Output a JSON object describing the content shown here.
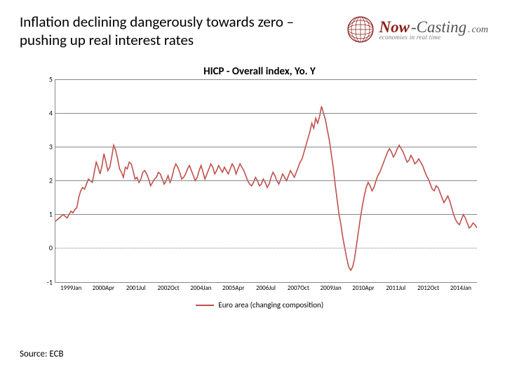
{
  "header": {
    "title": "Inflation declining dangerously towards zero – pushing up real interest rates",
    "logo_now": "Now",
    "logo_casting": "-Casting",
    "logo_dot": ".",
    "logo_com": "com",
    "logo_tagline": "economies in real time"
  },
  "chart": {
    "type": "line",
    "title": "HICP - Overall index, Yo. Y",
    "title_fontsize": 15,
    "background_color": "#ffffff",
    "grid_color": "#888888",
    "zero_line_style": "dotted",
    "line_color": "#c0504d",
    "line_width": 1.6,
    "ylim": [
      -1,
      5
    ],
    "yticks": [
      -1,
      0,
      1,
      2,
      3,
      4,
      5
    ],
    "label_fontsize": 10,
    "x_labels": [
      "1999Jan",
      "2000Apr",
      "2001Jul",
      "2002Oct",
      "2004Jan",
      "2005Apr",
      "2006Jul",
      "2007Oct",
      "2009Jan",
      "2010Apr",
      "2011Jul",
      "2012Oct",
      "2014Jan"
    ],
    "series": [
      0.8,
      0.85,
      0.9,
      0.95,
      1.0,
      0.95,
      0.9,
      1.0,
      1.1,
      1.05,
      1.15,
      1.2,
      1.5,
      1.7,
      1.8,
      1.75,
      1.9,
      2.05,
      2.0,
      1.95,
      2.25,
      2.55,
      2.4,
      2.2,
      2.45,
      2.8,
      2.55,
      2.3,
      2.4,
      2.7,
      3.05,
      2.9,
      2.65,
      2.35,
      2.25,
      2.1,
      2.4,
      2.35,
      2.55,
      2.5,
      2.3,
      2.05,
      2.1,
      1.95,
      2.05,
      2.25,
      2.3,
      2.2,
      2.05,
      1.85,
      1.95,
      2.05,
      2.1,
      2.25,
      2.2,
      2.05,
      1.9,
      2.0,
      2.15,
      1.95,
      2.1,
      2.35,
      2.5,
      2.4,
      2.25,
      2.05,
      2.1,
      2.2,
      2.35,
      2.45,
      2.3,
      2.15,
      2.0,
      2.1,
      2.3,
      2.45,
      2.25,
      2.05,
      2.2,
      2.35,
      2.5,
      2.4,
      2.2,
      2.3,
      2.45,
      2.35,
      2.25,
      2.4,
      2.3,
      2.2,
      2.35,
      2.5,
      2.4,
      2.2,
      2.35,
      2.5,
      2.4,
      2.3,
      2.15,
      2.0,
      1.9,
      1.85,
      1.95,
      2.1,
      2.0,
      1.85,
      1.9,
      2.05,
      1.95,
      1.8,
      1.9,
      2.1,
      2.25,
      2.15,
      2.0,
      1.9,
      2.05,
      2.2,
      2.1,
      2.0,
      2.15,
      2.3,
      2.2,
      2.1,
      2.25,
      2.4,
      2.55,
      2.65,
      2.85,
      3.05,
      3.25,
      3.45,
      3.7,
      3.55,
      3.85,
      3.7,
      3.9,
      4.2,
      4.0,
      3.8,
      3.5,
      3.2,
      2.8,
      2.4,
      1.9,
      1.45,
      1.0,
      0.7,
      0.3,
      0.0,
      -0.3,
      -0.55,
      -0.65,
      -0.55,
      -0.3,
      0.1,
      0.5,
      0.9,
      1.25,
      1.55,
      1.8,
      1.95,
      1.85,
      1.7,
      1.8,
      2.0,
      2.15,
      2.25,
      2.4,
      2.55,
      2.7,
      2.85,
      2.95,
      2.85,
      2.7,
      2.8,
      2.95,
      3.05,
      2.95,
      2.85,
      2.7,
      2.55,
      2.6,
      2.75,
      2.65,
      2.5,
      2.55,
      2.65,
      2.55,
      2.45,
      2.3,
      2.15,
      2.05,
      1.9,
      1.75,
      1.7,
      1.85,
      1.8,
      1.65,
      1.5,
      1.35,
      1.45,
      1.55,
      1.4,
      1.2,
      1.0,
      0.85,
      0.75,
      0.7,
      0.85,
      1.0,
      0.9,
      0.75,
      0.6,
      0.65,
      0.75,
      0.7,
      0.6
    ],
    "legend_label": "Euro area (changing composition)"
  },
  "source_label": "Source: ECB"
}
